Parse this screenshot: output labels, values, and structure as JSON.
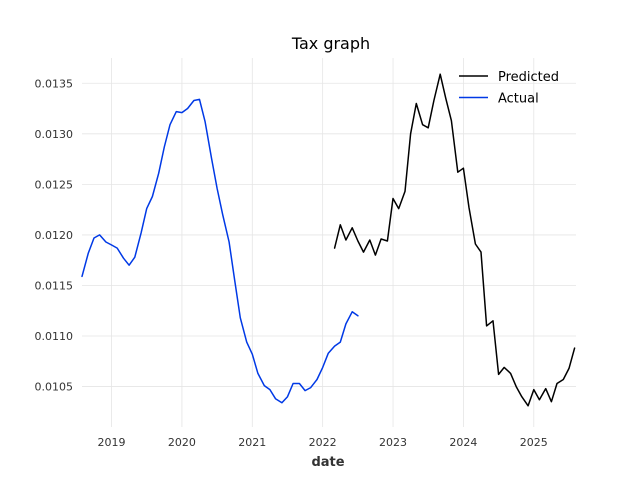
{
  "chart_data": {
    "type": "line",
    "title": "Tax graph",
    "xlabel": "date",
    "ylabel": "",
    "xlim": [
      2018.58,
      2025.6
    ],
    "ylim": [
      0.0101,
      0.01375
    ],
    "x_ticks": [
      2019,
      2020,
      2021,
      2022,
      2023,
      2024,
      2025
    ],
    "x_tick_labels": [
      "2019",
      "2020",
      "2021",
      "2022",
      "2023",
      "2024",
      "2025"
    ],
    "y_ticks": [
      0.0105,
      0.011,
      0.0115,
      0.012,
      0.0125,
      0.013,
      0.0135
    ],
    "y_tick_labels": [
      "0.0105",
      "0.0110",
      "0.0115",
      "0.0120",
      "0.0125",
      "0.0130",
      "0.0135"
    ],
    "grid": true,
    "legend": {
      "position": "top-right",
      "entries": [
        "Predicted",
        "Actual"
      ]
    },
    "series": [
      {
        "name": "Predicted",
        "color": "#000000",
        "x": [
          2022.17,
          2022.25,
          2022.33,
          2022.42,
          2022.5,
          2022.58,
          2022.67,
          2022.75,
          2022.83,
          2022.92,
          2023.0,
          2023.08,
          2023.17,
          2023.25,
          2023.33,
          2023.42,
          2023.5,
          2023.58,
          2023.67,
          2023.75,
          2023.83,
          2023.92,
          2024.0,
          2024.08,
          2024.17,
          2024.25,
          2024.33,
          2024.42,
          2024.5,
          2024.58,
          2024.67,
          2024.75,
          2024.83,
          2024.92,
          2025.0,
          2025.08,
          2025.17,
          2025.25,
          2025.33,
          2025.42,
          2025.5,
          2025.58
        ],
        "values": [
          0.01187,
          0.0121,
          0.01195,
          0.01207,
          0.01194,
          0.01183,
          0.01195,
          0.0118,
          0.01196,
          0.01194,
          0.01236,
          0.01226,
          0.01243,
          0.013,
          0.0133,
          0.01309,
          0.01306,
          0.01333,
          0.01359,
          0.01335,
          0.01313,
          0.01262,
          0.01266,
          0.01227,
          0.01191,
          0.01183,
          0.0111,
          0.01115,
          0.01062,
          0.01069,
          0.01063,
          0.0105,
          0.0104,
          0.01031,
          0.01047,
          0.01037,
          0.01048,
          0.01035,
          0.01053,
          0.01057,
          0.01068,
          0.01088
        ]
      },
      {
        "name": "Actual",
        "color": "#0039e6",
        "x": [
          2018.58,
          2018.67,
          2018.75,
          2018.83,
          2018.92,
          2019.0,
          2019.08,
          2019.17,
          2019.25,
          2019.33,
          2019.42,
          2019.5,
          2019.58,
          2019.67,
          2019.75,
          2019.83,
          2019.92,
          2020.0,
          2020.08,
          2020.17,
          2020.25,
          2020.33,
          2020.42,
          2020.5,
          2020.58,
          2020.67,
          2020.75,
          2020.83,
          2020.92,
          2021.0,
          2021.08,
          2021.17,
          2021.25,
          2021.33,
          2021.42,
          2021.5,
          2021.58,
          2021.67,
          2021.75,
          2021.83,
          2021.92,
          2022.0,
          2022.08,
          2022.17,
          2022.25,
          2022.33,
          2022.42,
          2022.5
        ],
        "values": [
          0.01159,
          0.01182,
          0.01197,
          0.012,
          0.01193,
          0.0119,
          0.01187,
          0.01177,
          0.0117,
          0.01178,
          0.01202,
          0.01226,
          0.01238,
          0.01261,
          0.01287,
          0.01309,
          0.01322,
          0.01321,
          0.01325,
          0.01333,
          0.01334,
          0.01312,
          0.01276,
          0.01246,
          0.0122,
          0.01193,
          0.01155,
          0.01118,
          0.01094,
          0.01082,
          0.01063,
          0.01051,
          0.01047,
          0.01038,
          0.01034,
          0.0104,
          0.01053,
          0.01053,
          0.01046,
          0.01049,
          0.01057,
          0.01069,
          0.01083,
          0.0109,
          0.01094,
          0.01112,
          0.01124,
          0.0112
        ]
      }
    ]
  }
}
